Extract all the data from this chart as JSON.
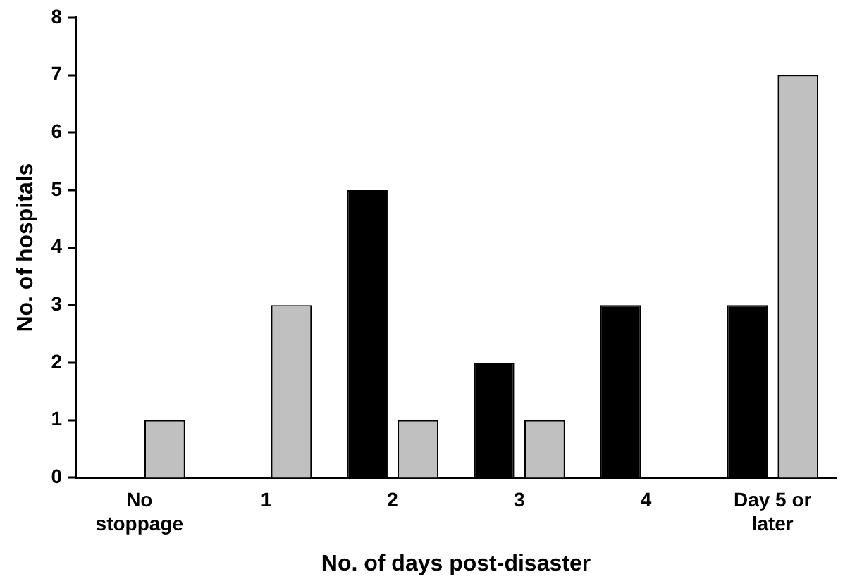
{
  "chart_data": {
    "type": "bar",
    "xlabel": "No. of days post-disaster",
    "ylabel": "No. of hospitals",
    "categories": [
      "No stoppage",
      "1",
      "2",
      "3",
      "4",
      "Day 5 or later"
    ],
    "series": [
      {
        "color": "#000000",
        "values": [
          0,
          0,
          5,
          2,
          3,
          3
        ]
      },
      {
        "color": "#c0c0c0",
        "values": [
          1,
          3,
          1,
          1,
          0,
          7
        ]
      }
    ],
    "ylim": [
      0,
      8
    ],
    "yticks": [
      0,
      1,
      2,
      3,
      4,
      5,
      6,
      7,
      8
    ],
    "grid": false,
    "legend": false
  }
}
